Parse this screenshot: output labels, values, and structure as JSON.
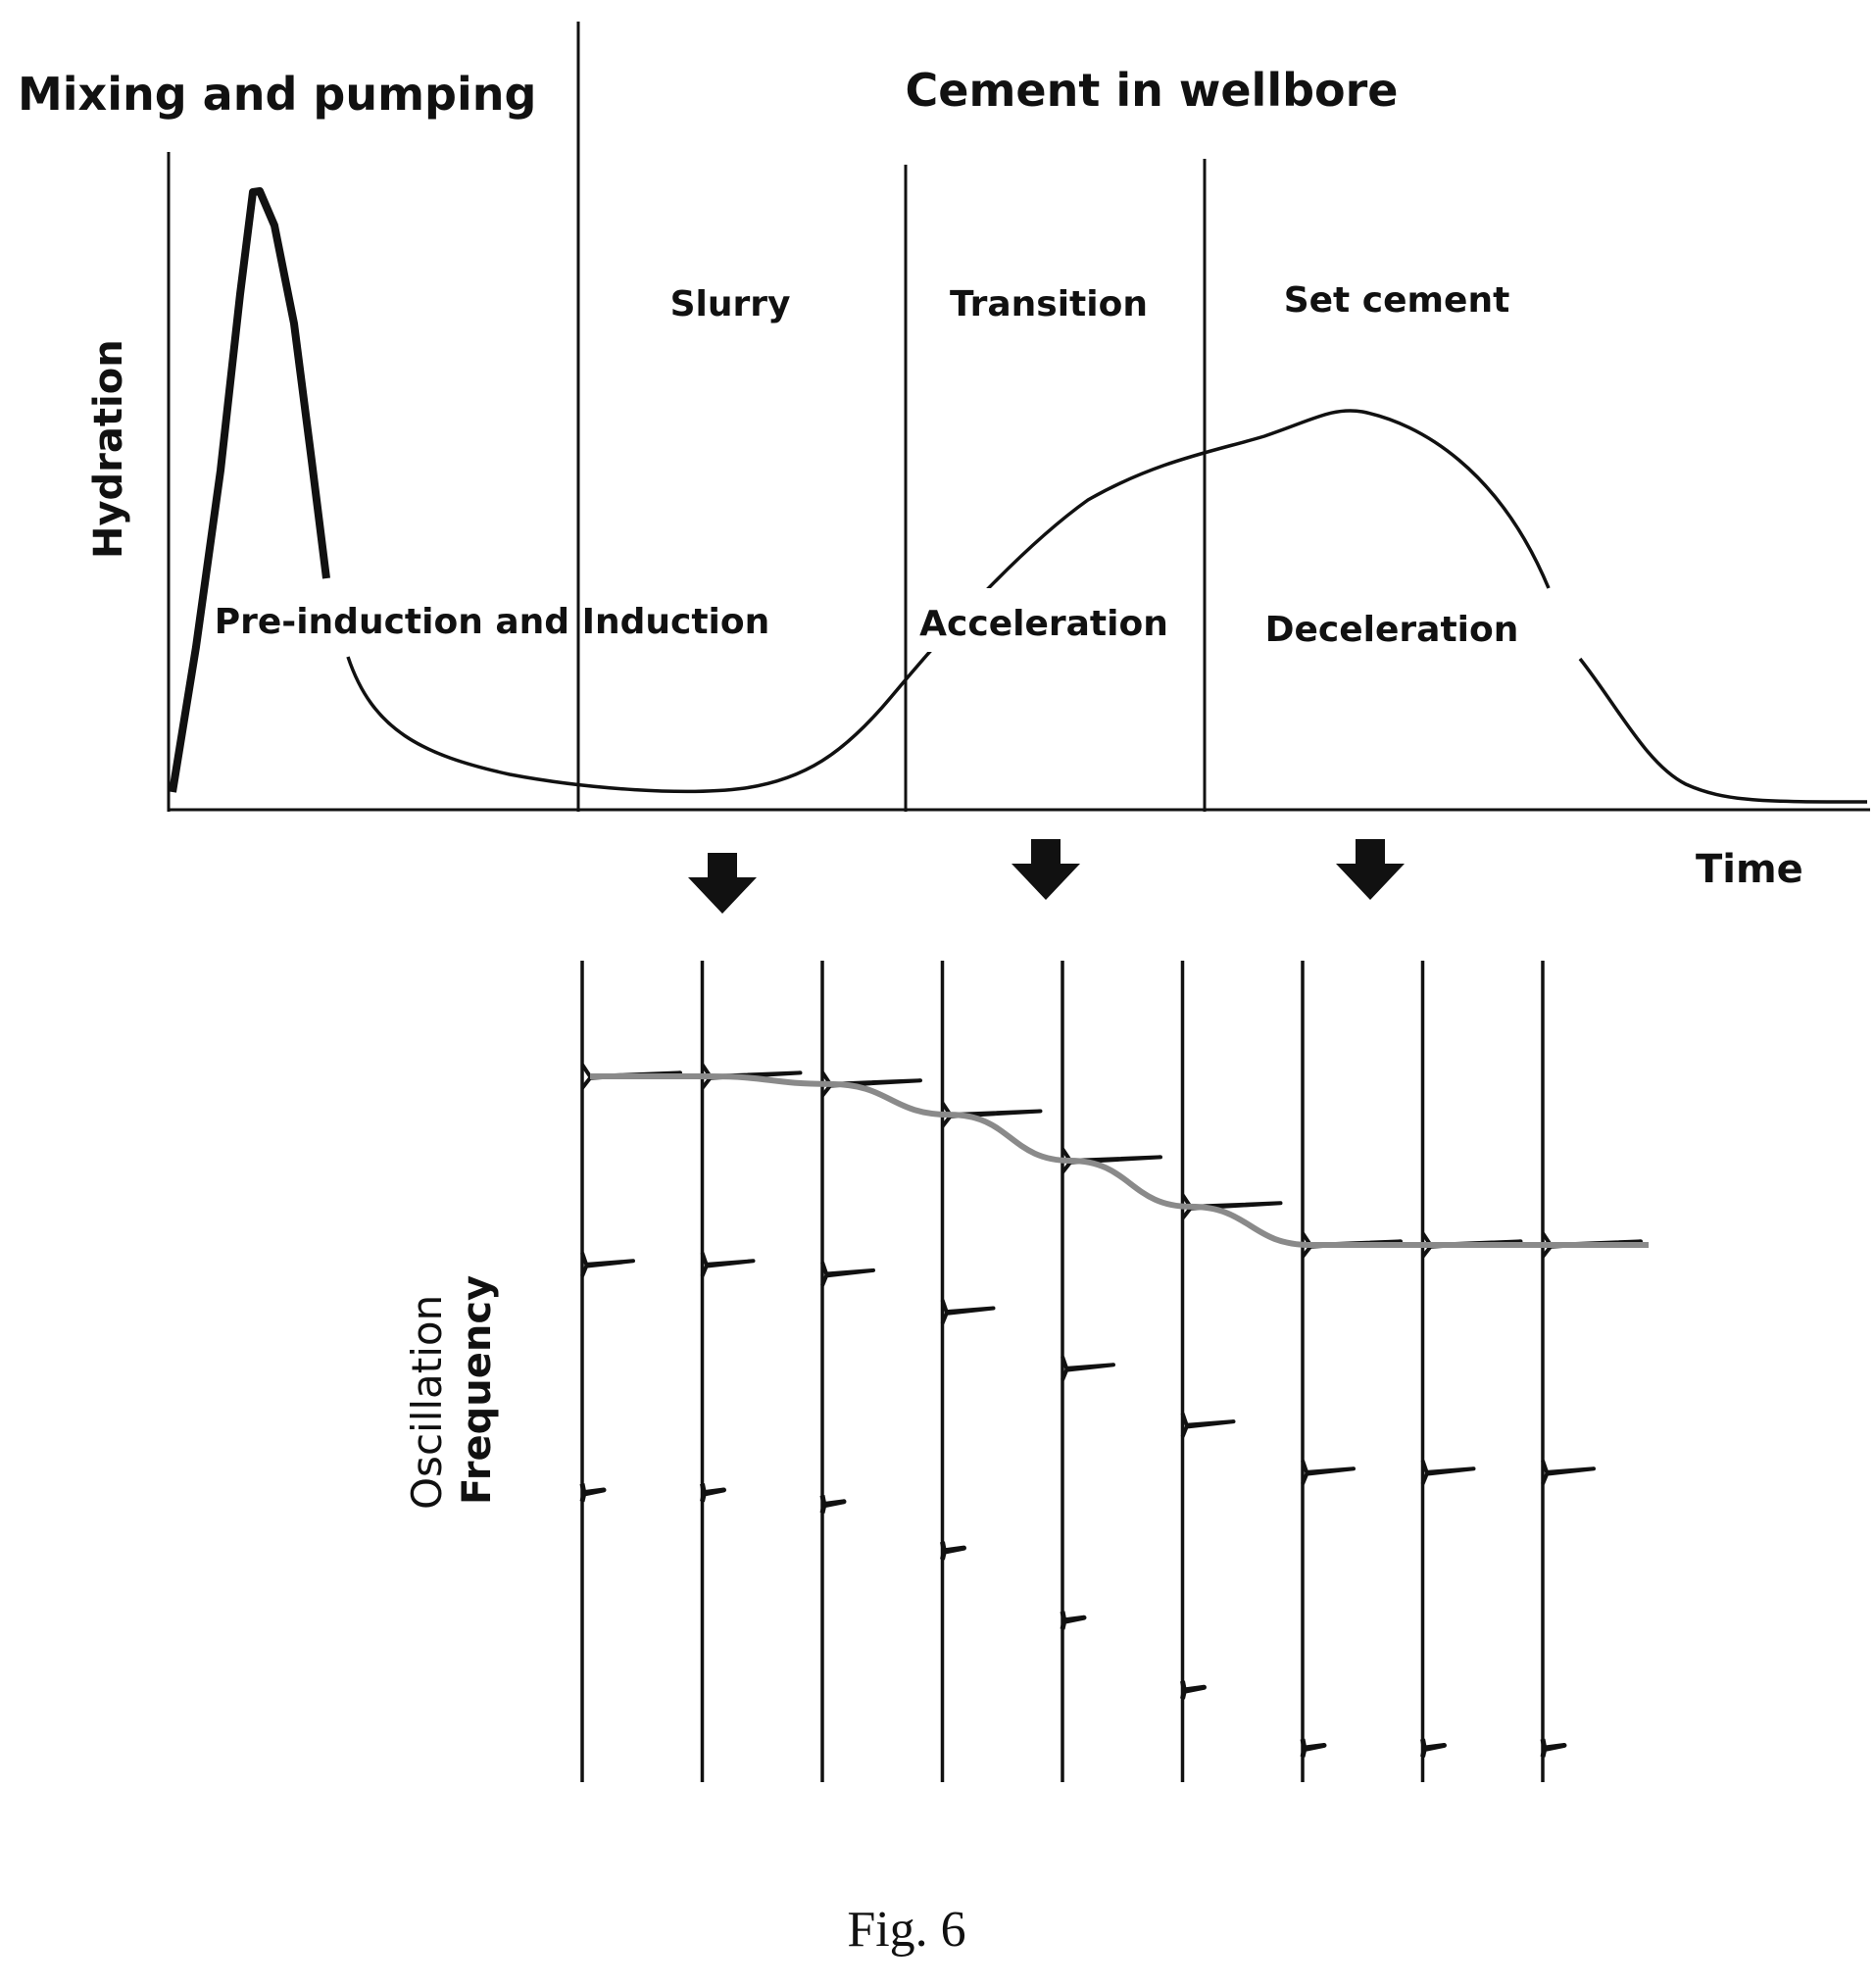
{
  "headers": {
    "left": "Mixing and pumping",
    "right": "Cement in wellbore"
  },
  "states": {
    "slurry": "Slurry",
    "transition": "Transition",
    "set_cement": "Set cement"
  },
  "periods": {
    "induction": "Pre-induction and Induction",
    "acceleration": "Acceleration",
    "deceleration": "Deceleration"
  },
  "axes": {
    "y_top": "Hydration",
    "x_top": "Time",
    "y_bottom_line1": "Oscillation",
    "y_bottom_line2": "Frequency"
  },
  "caption": "Fig. 6",
  "colors": {
    "ink": "#111111",
    "trend": "#8a8a8a"
  },
  "spectra": {
    "count": 9,
    "fundamental_relative": [
      1.0,
      1.0,
      0.99,
      0.95,
      0.89,
      0.83,
      0.78,
      0.78,
      0.78
    ]
  }
}
